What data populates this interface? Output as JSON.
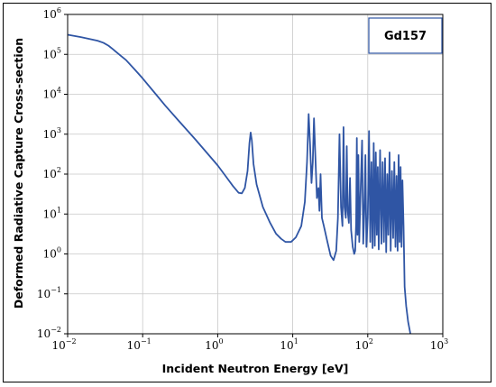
{
  "chart_data": {
    "type": "line",
    "title": "",
    "xlabel": "Incident Neutron Energy [eV]",
    "ylabel": "Deformed Radiative Capture Cross-section",
    "x_scale": "log",
    "y_scale": "log",
    "xlim": [
      0.01,
      1000
    ],
    "ylim": [
      0.01,
      1000000
    ],
    "grid": true,
    "legend_position": "top-right",
    "x_ticks": [
      {
        "base": "10",
        "exp": "−2"
      },
      {
        "base": "10",
        "exp": "−1"
      },
      {
        "base": "10",
        "exp": "0"
      },
      {
        "base": "10",
        "exp": "1"
      },
      {
        "base": "10",
        "exp": "2"
      },
      {
        "base": "10",
        "exp": "3"
      }
    ],
    "y_ticks": [
      {
        "base": "10",
        "exp": "−2"
      },
      {
        "base": "10",
        "exp": "−1"
      },
      {
        "base": "10",
        "exp": "0"
      },
      {
        "base": "10",
        "exp": "1"
      },
      {
        "base": "10",
        "exp": "2"
      },
      {
        "base": "10",
        "exp": "3"
      },
      {
        "base": "10",
        "exp": "4"
      },
      {
        "base": "10",
        "exp": "5"
      },
      {
        "base": "10",
        "exp": "6"
      }
    ],
    "line_color": "#2f55a4",
    "series": [
      {
        "name": "Gd157",
        "points": [
          [
            0.01,
            310000
          ],
          [
            0.015,
            270000
          ],
          [
            0.02,
            240000
          ],
          [
            0.025,
            220000
          ],
          [
            0.03,
            195000
          ],
          [
            0.035,
            165000
          ],
          [
            0.04,
            135000
          ],
          [
            0.05,
            95000
          ],
          [
            0.06,
            72000
          ],
          [
            0.08,
            40000
          ],
          [
            0.1,
            25000
          ],
          [
            0.15,
            10000
          ],
          [
            0.2,
            5200
          ],
          [
            0.3,
            2200
          ],
          [
            0.5,
            750
          ],
          [
            0.7,
            360
          ],
          [
            1.0,
            165
          ],
          [
            1.3,
            85
          ],
          [
            1.6,
            50
          ],
          [
            1.9,
            34
          ],
          [
            2.1,
            33
          ],
          [
            2.3,
            45
          ],
          [
            2.5,
            120
          ],
          [
            2.65,
            600
          ],
          [
            2.75,
            1100
          ],
          [
            2.85,
            700
          ],
          [
            3.0,
            180
          ],
          [
            3.3,
            55
          ],
          [
            4.0,
            15
          ],
          [
            5.0,
            6
          ],
          [
            6.0,
            3.2
          ],
          [
            7.0,
            2.4
          ],
          [
            8.0,
            2.0
          ],
          [
            9.5,
            2.0
          ],
          [
            11.0,
            2.6
          ],
          [
            13.0,
            5
          ],
          [
            14.5,
            20
          ],
          [
            15.5,
            200
          ],
          [
            16.3,
            3200
          ],
          [
            17.0,
            600
          ],
          [
            17.8,
            60
          ],
          [
            18.5,
            200
          ],
          [
            19.2,
            2500
          ],
          [
            20.0,
            300
          ],
          [
            21.0,
            25
          ],
          [
            22.0,
            45
          ],
          [
            22.7,
            12
          ],
          [
            23.5,
            100
          ],
          [
            24.5,
            8
          ],
          [
            26.0,
            5
          ],
          [
            29.0,
            2
          ],
          [
            32.0,
            0.9
          ],
          [
            35.0,
            0.7
          ],
          [
            38.0,
            1.2
          ],
          [
            40.0,
            8
          ],
          [
            42.0,
            1000
          ],
          [
            44.0,
            15
          ],
          [
            46.0,
            5
          ],
          [
            47.5,
            1500
          ],
          [
            49.0,
            15
          ],
          [
            51.0,
            8
          ],
          [
            52.5,
            500
          ],
          [
            54.0,
            12
          ],
          [
            56.0,
            6
          ],
          [
            58.0,
            80
          ],
          [
            60.0,
            4
          ],
          [
            63.0,
            1.5
          ],
          [
            66.0,
            1.0
          ],
          [
            68.0,
            1.2
          ],
          [
            70.0,
            6
          ],
          [
            71.5,
            800
          ],
          [
            73.0,
            3
          ],
          [
            75.0,
            300
          ],
          [
            77.0,
            2
          ],
          [
            80.0,
            30
          ],
          [
            84.0,
            700
          ],
          [
            87.0,
            1.8
          ],
          [
            90.0,
            12
          ],
          [
            93.0,
            300
          ],
          [
            96.0,
            1.5
          ],
          [
            100.0,
            8
          ],
          [
            104.0,
            1200
          ],
          [
            108.0,
            2
          ],
          [
            112.0,
            200
          ],
          [
            116.0,
            1.4
          ],
          [
            120.0,
            600
          ],
          [
            124.0,
            1.6
          ],
          [
            128.0,
            350
          ],
          [
            132.0,
            3
          ],
          [
            136.0,
            150
          ],
          [
            140.0,
            1.3
          ],
          [
            146.0,
            400
          ],
          [
            152.0,
            1.8
          ],
          [
            158.0,
            200
          ],
          [
            164.0,
            2
          ],
          [
            170.0,
            250
          ],
          [
            176.0,
            1.1
          ],
          [
            182.0,
            100
          ],
          [
            188.0,
            3
          ],
          [
            195.0,
            350
          ],
          [
            202.0,
            1.2
          ],
          [
            210.0,
            120
          ],
          [
            218.0,
            2.5
          ],
          [
            226.0,
            200
          ],
          [
            234.0,
            1.5
          ],
          [
            242.0,
            90
          ],
          [
            250.0,
            1.2
          ],
          [
            258.0,
            300
          ],
          [
            266.0,
            2
          ],
          [
            274.0,
            150
          ],
          [
            282.0,
            1.5
          ],
          [
            290.0,
            70
          ],
          [
            300.0,
            5
          ],
          [
            310.0,
            0.15
          ],
          [
            325.0,
            0.05
          ],
          [
            345.0,
            0.02
          ],
          [
            370.0,
            0.01
          ]
        ]
      }
    ]
  }
}
